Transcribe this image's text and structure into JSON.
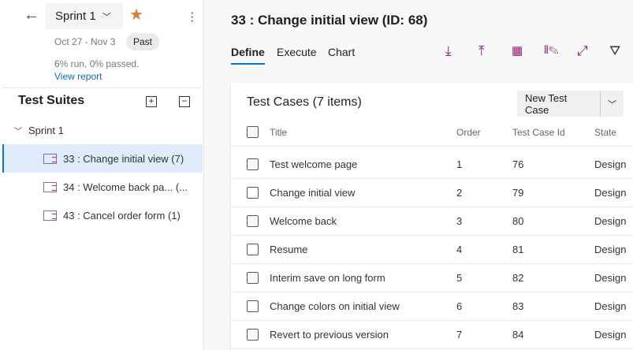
{
  "sprint": {
    "name": "Sprint 1",
    "dates": "Oct 27 - Nov 3",
    "badge": "Past",
    "stats": "6% run, 0% passed.",
    "report_link": "View report"
  },
  "suites": {
    "title": "Test Suites",
    "root": "Sprint 1",
    "items": [
      {
        "label": "33 : Change initial view (7)",
        "selected": true
      },
      {
        "label": "34 : Welcome back pa... (..."
      },
      {
        "label": "43 : Cancel order form (1)"
      }
    ]
  },
  "page": {
    "title": "33 : Change initial view (ID: 68)"
  },
  "tabs": [
    "Define",
    "Execute",
    "Chart"
  ],
  "toolbar_icons": [
    "download-icon",
    "upload-icon",
    "grid-icon",
    "column-options-icon",
    "fullscreen-icon",
    "filter-icon"
  ],
  "accent": "#0078d4",
  "icon_color": "#8a1a7a",
  "cases": {
    "title": "Test Cases (7 items)",
    "new_button": "New Test Case",
    "columns": [
      "Title",
      "Order",
      "Test Case Id",
      "State"
    ],
    "rows": [
      [
        "Test welcome page",
        "1",
        "76",
        "Design"
      ],
      [
        "Change initial view",
        "2",
        "79",
        "Design"
      ],
      [
        "Welcome back",
        "3",
        "80",
        "Design"
      ],
      [
        "Resume",
        "4",
        "81",
        "Design"
      ],
      [
        "Interim save on long form",
        "5",
        "82",
        "Design"
      ],
      [
        "Change colors on initial view",
        "6",
        "83",
        "Design"
      ],
      [
        "Revert to previous version",
        "7",
        "84",
        "Design"
      ]
    ]
  }
}
